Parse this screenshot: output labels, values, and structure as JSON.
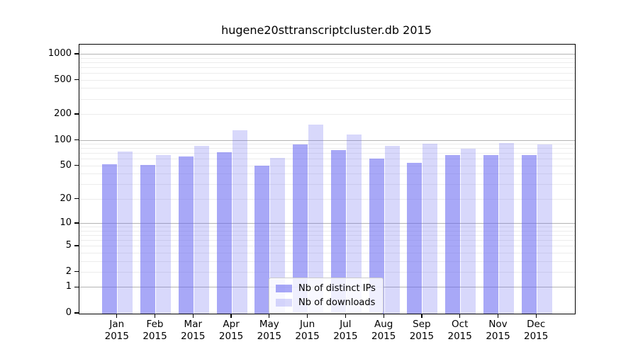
{
  "chart_data": {
    "type": "bar",
    "title": "hugene20sttranscriptcluster.db 2015",
    "categories": [
      "Jan",
      "Feb",
      "Mar",
      "Apr",
      "May",
      "Jun",
      "Jul",
      "Aug",
      "Sep",
      "Oct",
      "Nov",
      "Dec"
    ],
    "year_label": "2015",
    "series": [
      {
        "name": "Nb of distinct IPs",
        "color": "rgba(100,100,240,0.56)",
        "values": [
          53,
          52,
          65,
          73,
          51,
          90,
          78,
          62,
          55,
          67,
          67,
          68
        ]
      },
      {
        "name": "Nb of downloads",
        "color": "rgba(100,100,240,0.25)",
        "values": [
          75,
          68,
          86,
          133,
          63,
          153,
          118,
          87,
          91,
          81,
          94,
          90
        ]
      }
    ],
    "y_ticks": [
      0,
      1,
      2,
      5,
      10,
      20,
      50,
      100,
      200,
      500,
      1000
    ],
    "y_scale": "log10(1+x)",
    "ylim": [
      0,
      1300
    ],
    "grid": {
      "major_at": [
        1,
        10,
        100,
        1000
      ],
      "minor": "2-9 per decade"
    },
    "legend_position": "inside-bottom-center",
    "colors": {
      "major_grid": "#b4b4b4",
      "minor_grid": "#ececec",
      "axis": "#000000"
    }
  }
}
